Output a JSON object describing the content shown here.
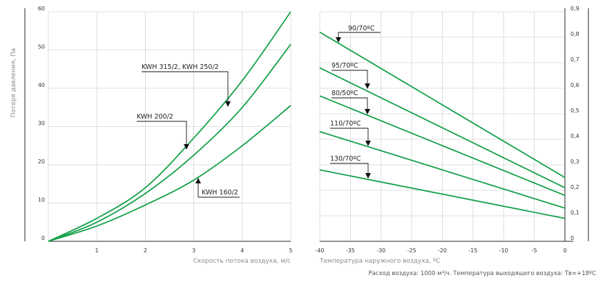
{
  "colors": {
    "curve": "#12a04a",
    "grid": "#d4d4d4",
    "axis": "#222222",
    "text": "#333333",
    "muted": "#8a8a8a"
  },
  "chart_data": [
    {
      "type": "line",
      "xlabel": "Скорость потока воздуха, м/с",
      "ylabel": "Потеря давления, Па",
      "xlim": [
        0,
        5
      ],
      "ylim": [
        0,
        60
      ],
      "xticks": [
        "1",
        "2",
        "3",
        "4",
        "5"
      ],
      "yticks": [
        "0",
        "10",
        "20",
        "30",
        "40",
        "50",
        "60"
      ],
      "grid": true,
      "series": [
        {
          "name": "KWH 315/2, KWH 250/2",
          "x": [
            0,
            1,
            2,
            3,
            4,
            5
          ],
          "y": [
            0,
            6,
            14,
            27,
            42,
            60
          ]
        },
        {
          "name": "KWH 200/2",
          "x": [
            0,
            1,
            2,
            3,
            4,
            5
          ],
          "y": [
            0,
            5,
            12.5,
            22.5,
            35,
            51.5
          ]
        },
        {
          "name": "KWH 160/2",
          "x": [
            0,
            1,
            2,
            3,
            4,
            5
          ],
          "y": [
            0,
            4,
            9.5,
            16,
            25,
            35.5
          ]
        }
      ]
    },
    {
      "type": "line",
      "xlabel": "Температура наружного воздуха, ºС",
      "xlim": [
        -40,
        0
      ],
      "ylim": [
        0,
        0.9
      ],
      "xticks": [
        "-40",
        "-35",
        "-30",
        "-25",
        "-20",
        "-15",
        "-10",
        "-5",
        "0"
      ],
      "yticks": [
        "0",
        "0,1",
        "0,2",
        "0,3",
        "0,4",
        "0,5",
        "0,6",
        "0,7",
        "0,8",
        "0,9"
      ],
      "grid": true,
      "series": [
        {
          "name": "90/70ºС",
          "x": [
            -40,
            0
          ],
          "y": [
            0.82,
            0.25
          ]
        },
        {
          "name": "95/70ºС",
          "x": [
            -40,
            0
          ],
          "y": [
            0.68,
            0.21
          ]
        },
        {
          "name": "80/50ºС",
          "x": [
            -40,
            0
          ],
          "y": [
            0.57,
            0.18
          ]
        },
        {
          "name": "110/70ºС",
          "x": [
            -40,
            0
          ],
          "y": [
            0.43,
            0.13
          ]
        },
        {
          "name": "130/70ºС",
          "x": [
            -40,
            0
          ],
          "y": [
            0.28,
            0.09
          ]
        }
      ]
    }
  ],
  "footnote": "Расход воздуха: 1000 м³/ч. Температура выходящего воздуха: Тв=+18ºС"
}
